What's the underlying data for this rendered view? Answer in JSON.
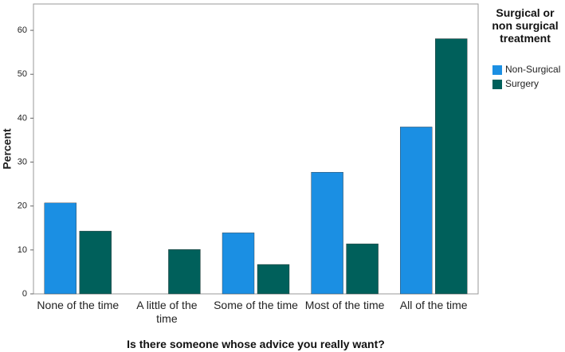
{
  "chart_data": {
    "type": "bar",
    "x_label": "Is there someone whose advice you really want?",
    "y_label": "Percent",
    "legend_title": "Surgical or non surgical treatment",
    "categories": [
      "None of the time",
      "A little of the time",
      "Some of the time",
      "Most of the time",
      "All of the time"
    ],
    "series": [
      {
        "name": "Non-Surgical",
        "color": "#1b8fe3",
        "values": [
          20.7,
          0,
          13.9,
          27.7,
          38.0
        ]
      },
      {
        "name": "Surgery",
        "color": "#00605b",
        "values": [
          14.3,
          10.1,
          6.7,
          11.4,
          58.1
        ]
      }
    ],
    "ylim": [
      0,
      66
    ],
    "yticks": [
      0,
      10,
      20,
      30,
      40,
      50,
      60
    ],
    "grid": false,
    "legend": "right"
  }
}
